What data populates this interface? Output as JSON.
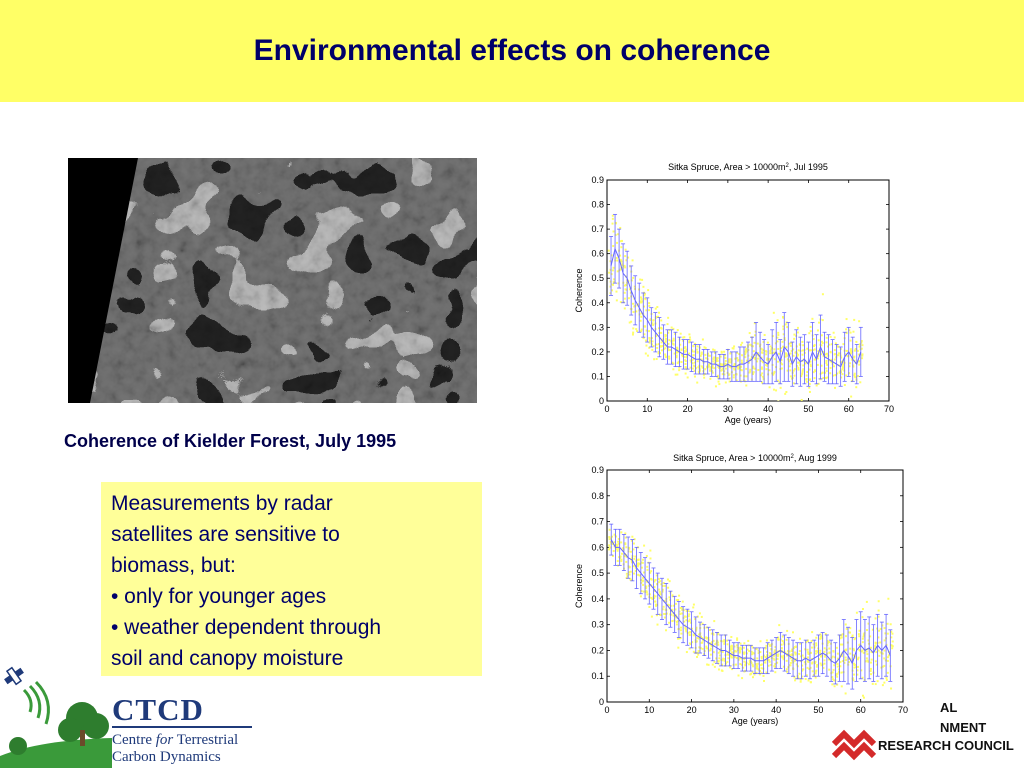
{
  "slide": {
    "title": "Environmental effects on coherence",
    "image_caption": "Coherence of Kielder Forest, July 1995",
    "text_lines": [
      "Measurements by radar",
      "satellites are sensitive to",
      "biomass, but:",
      "• only for younger ages",
      "• weather dependent through",
      "soil and canopy moisture"
    ]
  },
  "logos": {
    "ctcd": {
      "name": "CTCD",
      "line1_pre": "Centre ",
      "line1_italic": "for",
      "line1_post": " Terrestrial",
      "line2": "Carbon Dynamics"
    },
    "nerc": {
      "line1": "AL",
      "line2": "NMENT",
      "line3": "RESEARCH COUNCIL"
    }
  },
  "colors": {
    "title_band": "#ffff66",
    "text_box": "#ffff99",
    "scatter": "#ffff66",
    "series_line": "#6666ff"
  },
  "chart_data": [
    {
      "type": "scatter",
      "title_main": "Sitka Spruce, Area > 10000m",
      "title_sup": "2",
      "title_tail": ", Jul 1995",
      "xlabel": "Age (years)",
      "ylabel": "Coherence",
      "xlim": [
        0,
        70
      ],
      "ylim": [
        0,
        0.9
      ],
      "xticks": [
        "0",
        "10",
        "20",
        "30",
        "40",
        "50",
        "60",
        "70"
      ],
      "yticks": [
        "0",
        "0.1",
        "0.2",
        "0.3",
        "0.4",
        "0.5",
        "0.6",
        "0.7",
        "0.8",
        "0.9"
      ],
      "series": [
        {
          "x": [
            1,
            2,
            3,
            4,
            5,
            6,
            7,
            8,
            9,
            10,
            11,
            12,
            13,
            14,
            15,
            16,
            17,
            18,
            19,
            20,
            21,
            22,
            23,
            24,
            25,
            26,
            27,
            28,
            29,
            30,
            31,
            32,
            33,
            34,
            35,
            36,
            37,
            38,
            39,
            40,
            41,
            42,
            43,
            44,
            45,
            46,
            47,
            48,
            49,
            50,
            51,
            52,
            53,
            54,
            55,
            56,
            57,
            58,
            59,
            60,
            61,
            62,
            63
          ],
          "mean": [
            0.55,
            0.62,
            0.58,
            0.52,
            0.5,
            0.45,
            0.41,
            0.38,
            0.35,
            0.33,
            0.3,
            0.28,
            0.26,
            0.24,
            0.22,
            0.22,
            0.21,
            0.2,
            0.19,
            0.19,
            0.18,
            0.17,
            0.17,
            0.16,
            0.16,
            0.15,
            0.15,
            0.14,
            0.14,
            0.15,
            0.14,
            0.14,
            0.15,
            0.15,
            0.16,
            0.17,
            0.2,
            0.18,
            0.16,
            0.15,
            0.18,
            0.2,
            0.16,
            0.22,
            0.2,
            0.15,
            0.18,
            0.16,
            0.17,
            0.15,
            0.2,
            0.17,
            0.22,
            0.18,
            0.17,
            0.16,
            0.15,
            0.14,
            0.18,
            0.2,
            0.17,
            0.15,
            0.2
          ],
          "err": [
            0.12,
            0.14,
            0.12,
            0.12,
            0.11,
            0.1,
            0.1,
            0.1,
            0.09,
            0.09,
            0.08,
            0.08,
            0.08,
            0.07,
            0.07,
            0.07,
            0.07,
            0.06,
            0.06,
            0.06,
            0.06,
            0.06,
            0.06,
            0.05,
            0.05,
            0.05,
            0.05,
            0.05,
            0.05,
            0.06,
            0.06,
            0.06,
            0.07,
            0.07,
            0.08,
            0.09,
            0.12,
            0.1,
            0.09,
            0.08,
            0.11,
            0.12,
            0.09,
            0.14,
            0.12,
            0.09,
            0.11,
            0.1,
            0.1,
            0.09,
            0.12,
            0.1,
            0.13,
            0.1,
            0.1,
            0.09,
            0.08,
            0.08,
            0.1,
            0.1,
            0.09,
            0.08,
            0.1
          ]
        }
      ]
    },
    {
      "type": "scatter",
      "title_main": "Sitka Spruce, Area > 10000m",
      "title_sup": "2",
      "title_tail": ", Aug 1999",
      "xlabel": "Age (years)",
      "ylabel": "Coherence",
      "xlim": [
        0,
        70
      ],
      "ylim": [
        0,
        0.9
      ],
      "xticks": [
        "0",
        "10",
        "20",
        "30",
        "40",
        "50",
        "60",
        "70"
      ],
      "yticks": [
        "0",
        "0.1",
        "0.2",
        "0.3",
        "0.4",
        "0.5",
        "0.6",
        "0.7",
        "0.8",
        "0.9"
      ],
      "series": [
        {
          "x": [
            1,
            2,
            3,
            4,
            5,
            6,
            7,
            8,
            9,
            10,
            11,
            12,
            13,
            14,
            15,
            16,
            17,
            18,
            19,
            20,
            21,
            22,
            23,
            24,
            25,
            26,
            27,
            28,
            29,
            30,
            31,
            32,
            33,
            34,
            35,
            36,
            37,
            38,
            39,
            40,
            41,
            42,
            43,
            44,
            45,
            46,
            47,
            48,
            49,
            50,
            51,
            52,
            53,
            54,
            55,
            56,
            57,
            58,
            59,
            60,
            61,
            62,
            63,
            64,
            65,
            66,
            67
          ],
          "mean": [
            0.63,
            0.6,
            0.6,
            0.58,
            0.56,
            0.55,
            0.52,
            0.5,
            0.48,
            0.46,
            0.44,
            0.42,
            0.4,
            0.38,
            0.36,
            0.34,
            0.32,
            0.3,
            0.29,
            0.28,
            0.26,
            0.25,
            0.24,
            0.23,
            0.22,
            0.21,
            0.2,
            0.2,
            0.19,
            0.18,
            0.18,
            0.17,
            0.17,
            0.17,
            0.16,
            0.16,
            0.16,
            0.17,
            0.18,
            0.19,
            0.2,
            0.19,
            0.18,
            0.17,
            0.16,
            0.16,
            0.17,
            0.16,
            0.17,
            0.18,
            0.19,
            0.18,
            0.16,
            0.15,
            0.17,
            0.2,
            0.18,
            0.15,
            0.2,
            0.22,
            0.2,
            0.21,
            0.19,
            0.22,
            0.2,
            0.22,
            0.18
          ],
          "err": [
            0.06,
            0.07,
            0.07,
            0.07,
            0.08,
            0.08,
            0.08,
            0.08,
            0.08,
            0.08,
            0.08,
            0.08,
            0.08,
            0.08,
            0.07,
            0.07,
            0.07,
            0.07,
            0.07,
            0.07,
            0.07,
            0.06,
            0.06,
            0.06,
            0.06,
            0.06,
            0.06,
            0.06,
            0.05,
            0.05,
            0.05,
            0.05,
            0.05,
            0.05,
            0.05,
            0.05,
            0.05,
            0.06,
            0.06,
            0.06,
            0.07,
            0.07,
            0.07,
            0.07,
            0.07,
            0.07,
            0.07,
            0.07,
            0.07,
            0.08,
            0.08,
            0.08,
            0.08,
            0.08,
            0.09,
            0.12,
            0.11,
            0.1,
            0.12,
            0.13,
            0.12,
            0.12,
            0.11,
            0.12,
            0.11,
            0.12,
            0.1
          ]
        }
      ]
    }
  ]
}
